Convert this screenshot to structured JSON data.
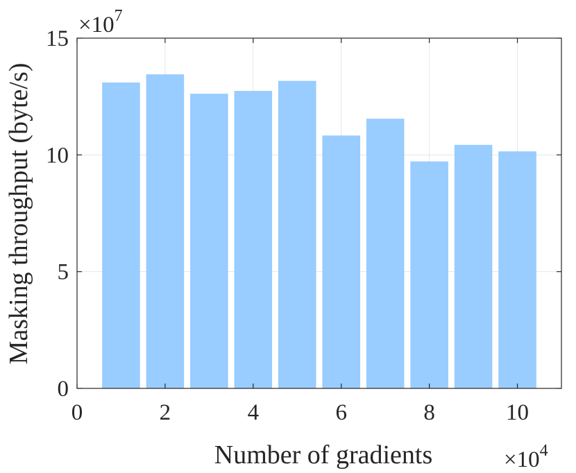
{
  "chart_data": {
    "type": "bar",
    "x": [
      1,
      2,
      3,
      4,
      5,
      6,
      7,
      8,
      9,
      10
    ],
    "values": [
      13.1,
      13.45,
      12.62,
      12.74,
      13.17,
      10.83,
      11.55,
      9.72,
      10.43,
      10.15
    ],
    "xlabel": "Number of gradients",
    "ylabel": "Masking throughput (byte/s)",
    "xlim": [
      0,
      11
    ],
    "ylim": [
      0,
      15
    ],
    "xticks": [
      0,
      2,
      4,
      6,
      8,
      10
    ],
    "xtick_labels": [
      "0",
      "2",
      "4",
      "6",
      "8",
      "10"
    ],
    "yticks": [
      0,
      5,
      10,
      15
    ],
    "ytick_labels": [
      "0",
      "5",
      "10",
      "15"
    ],
    "x_multiplier": "×10",
    "x_multiplier_exp": "4",
    "y_multiplier": "×10",
    "y_multiplier_exp": "7",
    "grid": true,
    "bar_color": "#99CCFF"
  }
}
